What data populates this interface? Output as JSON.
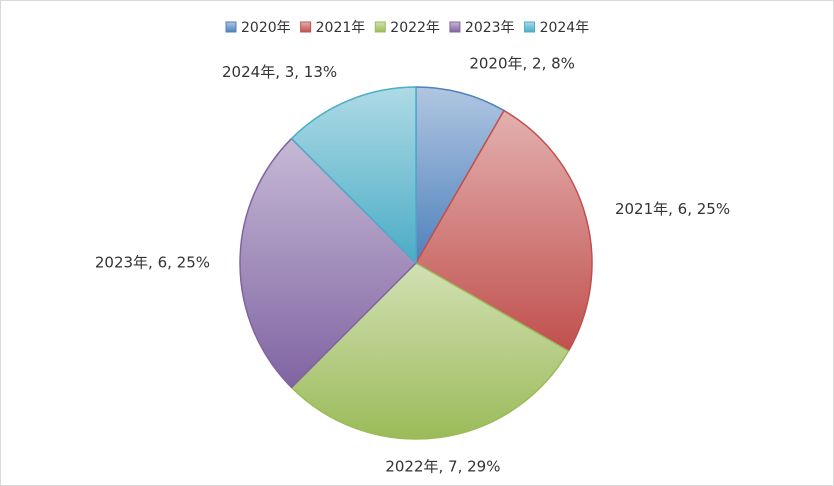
{
  "chart_data": {
    "type": "pie",
    "categories": [
      "2020年",
      "2021年",
      "2022年",
      "2023年",
      "2024年"
    ],
    "values": [
      2,
      6,
      7,
      6,
      3
    ],
    "value_labels": [
      "2020年, 2, 8%",
      "2021年, 6, 25%",
      "2022年, 7, 29%",
      "2023年, 6, 25%",
      "2024年, 3, 13%"
    ],
    "colors": [
      "#4f81bd",
      "#c0504d",
      "#9bbb59",
      "#8064a2",
      "#4bacc6"
    ],
    "legend": "top"
  }
}
